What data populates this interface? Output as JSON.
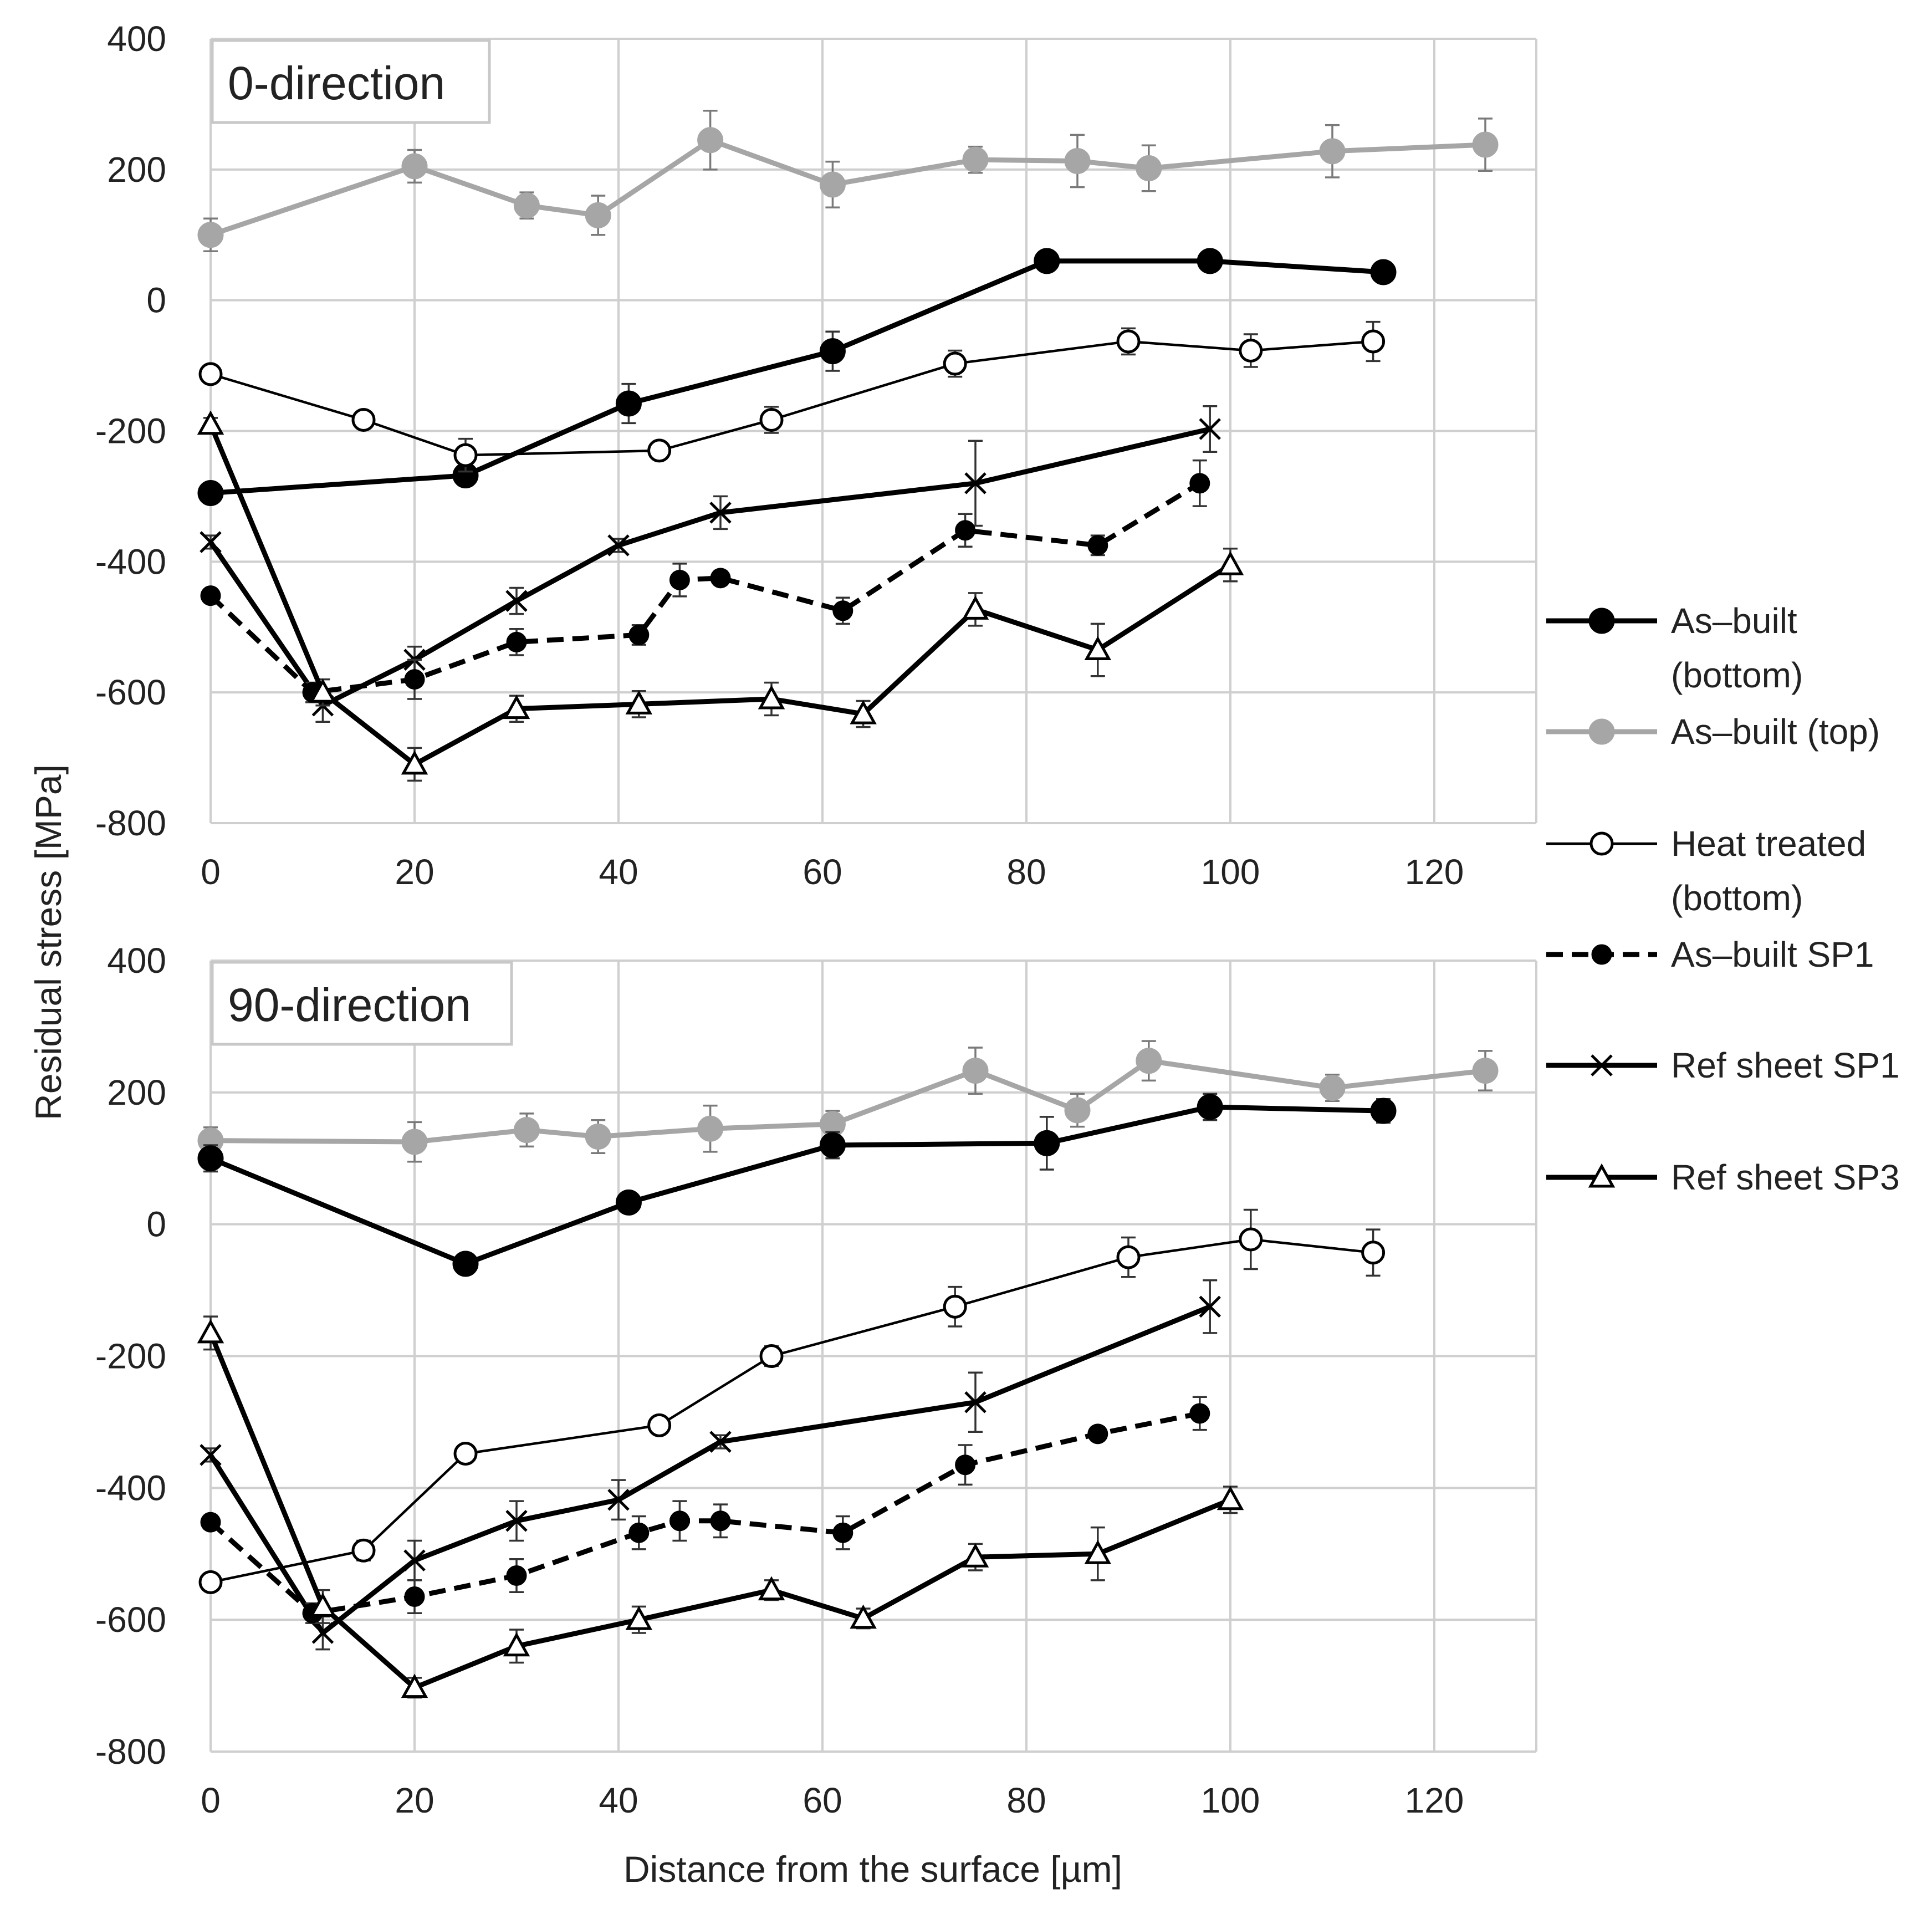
{
  "chart_data": {
    "type": "line",
    "ylabel": "Residual stress [MPa]",
    "xlabel": "Distance from the surface [µm]",
    "xlim": [
      0,
      130
    ],
    "ylim": [
      -800,
      400
    ],
    "x_ticks": [
      "0",
      "20",
      "40",
      "60",
      "80",
      "100",
      "120"
    ],
    "y_ticks": [
      "400",
      "200",
      "0",
      "-200",
      "-400",
      "-600",
      "-800"
    ],
    "legend": [
      {
        "key": "ab_bottom",
        "lines": [
          "As–built",
          "(bottom)"
        ],
        "color": "#000000",
        "style": "solid",
        "width": "thick",
        "marker": "filled-circle"
      },
      {
        "key": "ab_top",
        "lines": [
          "As–built (top)"
        ],
        "color": "#a6a6a6",
        "style": "solid",
        "width": "thick",
        "marker": "filled-circle"
      },
      {
        "key": "ht_bottom",
        "lines": [
          "Heat treated",
          "(bottom)"
        ],
        "color": "#000000",
        "style": "solid",
        "width": "thin",
        "marker": "open-circle"
      },
      {
        "key": "ab_sp1",
        "lines": [
          "As–built SP1"
        ],
        "color": "#000000",
        "style": "dashed",
        "width": "thick",
        "marker": "small-filled-circle"
      },
      {
        "key": "ref_sp1",
        "lines": [
          "Ref sheet SP1"
        ],
        "color": "#000000",
        "style": "solid",
        "width": "thick",
        "marker": "x"
      },
      {
        "key": "ref_sp3",
        "lines": [
          "Ref sheet SP3"
        ],
        "color": "#000000",
        "style": "solid",
        "width": "thick",
        "marker": "open-triangle"
      }
    ],
    "panels": [
      {
        "title": "0-direction",
        "series": [
          {
            "key": "ab_top",
            "x": [
              0,
              20,
              31,
              38,
              49,
              61,
              75,
              85,
              92,
              110,
              125
            ],
            "y": [
              100,
              205,
              145,
              130,
              245,
              177,
              215,
              213,
              202,
              228,
              238
            ],
            "err": [
              25,
              25,
              20,
              30,
              45,
              35,
              20,
              40,
              35,
              40,
              40
            ]
          },
          {
            "key": "ab_bottom",
            "x": [
              0,
              25,
              41,
              61,
              82,
              98,
              115
            ],
            "y": [
              -295,
              -268,
              -158,
              -78,
              60,
              60,
              43
            ],
            "err": [
              15,
              15,
              30,
              30,
              15,
              15,
              15
            ]
          },
          {
            "key": "ht_bottom",
            "x": [
              0,
              15,
              25,
              44,
              55,
              73,
              90,
              102,
              114
            ],
            "y": [
              -113,
              -183,
              -237,
              -230,
              -183,
              -97,
              -63,
              -77,
              -63
            ],
            "err": [
              12,
              12,
              25,
              12,
              20,
              20,
              20,
              25,
              30
            ]
          },
          {
            "key": "ref_sp1",
            "x": [
              0,
              11,
              20,
              30,
              40,
              50,
              75,
              98
            ],
            "y": [
              -370,
              -620,
              -550,
              -460,
              -375,
              -325,
              -280,
              -197
            ],
            "err": [
              10,
              25,
              20,
              20,
              10,
              25,
              65,
              35
            ]
          },
          {
            "key": "ab_sp1",
            "x": [
              0,
              10,
              20,
              30,
              42,
              46,
              50,
              62,
              74,
              87,
              97
            ],
            "y": [
              -452,
              -600,
              -580,
              -523,
              -512,
              -428,
              -425,
              -475,
              -352,
              -375,
              -280
            ],
            "err": [
              5,
              15,
              30,
              20,
              15,
              25,
              10,
              20,
              25,
              15,
              35
            ]
          },
          {
            "key": "ref_sp3",
            "x": [
              0,
              11,
              20,
              30,
              42,
              55,
              64,
              75,
              87,
              100
            ],
            "y": [
              -190,
              -600,
              -710,
              -625,
              -618,
              -610,
              -633,
              -473,
              -535,
              -405
            ],
            "err": [
              10,
              20,
              25,
              20,
              20,
              25,
              20,
              25,
              40,
              25
            ]
          }
        ]
      },
      {
        "title": "90-direction",
        "series": [
          {
            "key": "ab_top",
            "x": [
              0,
              20,
              31,
              38,
              49,
              61,
              75,
              85,
              92,
              110,
              125
            ],
            "y": [
              127,
              125,
              143,
              133,
              145,
              152,
              233,
              173,
              248,
              207,
              233
            ],
            "err": [
              20,
              30,
              25,
              25,
              35,
              20,
              35,
              25,
              30,
              20,
              30
            ]
          },
          {
            "key": "ab_bottom",
            "x": [
              0,
              25,
              41,
              61,
              82,
              98,
              115
            ],
            "y": [
              100,
              -60,
              33,
              120,
              123,
              178,
              172
            ],
            "err": [
              20,
              15,
              15,
              20,
              40,
              20,
              18
            ]
          },
          {
            "key": "ht_bottom",
            "x": [
              0,
              15,
              25,
              44,
              55,
              73,
              90,
              102,
              114
            ],
            "y": [
              -543,
              -495,
              -348,
              -305,
              -200,
              -125,
              -50,
              -23,
              -43
            ],
            "err": [
              10,
              15,
              12,
              12,
              15,
              30,
              30,
              45,
              35
            ]
          },
          {
            "key": "ref_sp1",
            "x": [
              0,
              11,
              20,
              30,
              40,
              50,
              75,
              98
            ],
            "y": [
              -350,
              -620,
              -510,
              -450,
              -418,
              -330,
              -270,
              -125
            ],
            "err": [
              10,
              25,
              30,
              30,
              30,
              10,
              45,
              40
            ]
          },
          {
            "key": "ab_sp1",
            "x": [
              0,
              10,
              20,
              30,
              42,
              46,
              50,
              62,
              74,
              87,
              97
            ],
            "y": [
              -452,
              -590,
              -565,
              -533,
              -468,
              -450,
              -450,
              -468,
              -365,
              -318,
              -287
            ],
            "err": [
              10,
              15,
              25,
              25,
              25,
              30,
              25,
              25,
              30,
              10,
              25
            ]
          },
          {
            "key": "ref_sp3",
            "x": [
              0,
              11,
              20,
              30,
              42,
              55,
              64,
              75,
              87,
              100
            ],
            "y": [
              -165,
              -580,
              -703,
              -640,
              -600,
              -555,
              -598,
              -505,
              -500,
              -418
            ],
            "err": [
              25,
              25,
              15,
              25,
              20,
              15,
              15,
              20,
              40,
              20
            ]
          }
        ]
      }
    ]
  }
}
